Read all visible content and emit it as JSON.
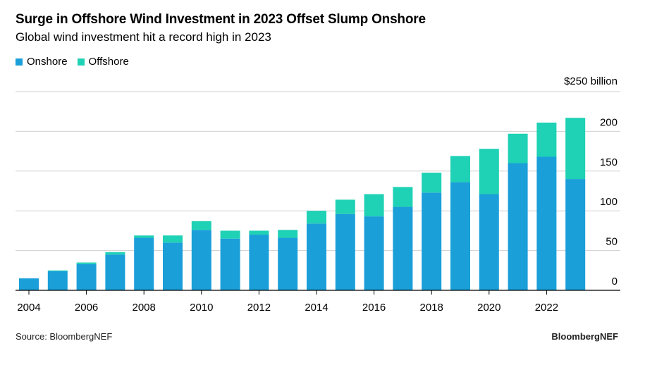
{
  "title": "Surge in Offshore Wind Investment in 2023 Offset Slump Onshore",
  "subtitle": "Global wind investment hit a record high in 2023",
  "legend": [
    {
      "label": "Onshore",
      "color": "#1a9fd9"
    },
    {
      "label": "Offshore",
      "color": "#1fd1b5"
    }
  ],
  "source": "Source: BloombergNEF",
  "brand": "BloombergNEF",
  "chart_data": {
    "type": "bar",
    "stacked": true,
    "categories": [
      "2004",
      "2005",
      "2006",
      "2007",
      "2008",
      "2009",
      "2010",
      "2011",
      "2012",
      "2013",
      "2014",
      "2015",
      "2016",
      "2017",
      "2018",
      "2019",
      "2020",
      "2021",
      "2022",
      "2023"
    ],
    "x_tick_labels": [
      "2004",
      "2006",
      "2008",
      "2010",
      "2012",
      "2014",
      "2016",
      "2018",
      "2020",
      "2022"
    ],
    "series": [
      {
        "name": "Onshore",
        "color": "#1a9fd9",
        "values": [
          15,
          24,
          33,
          45,
          66,
          60,
          76,
          65,
          70,
          66,
          84,
          96,
          93,
          105,
          123,
          136,
          121,
          160,
          168,
          140
        ]
      },
      {
        "name": "Offshore",
        "color": "#1fd1b5",
        "values": [
          0,
          1,
          2,
          3,
          3,
          9,
          11,
          10,
          5,
          10,
          16,
          18,
          28,
          25,
          25,
          33,
          57,
          37,
          43,
          77
        ]
      }
    ],
    "ylim": [
      0,
      250
    ],
    "y_ticks": [
      0,
      50,
      100,
      150,
      200
    ],
    "y_unit_label": "$250 billion",
    "grid": true
  }
}
